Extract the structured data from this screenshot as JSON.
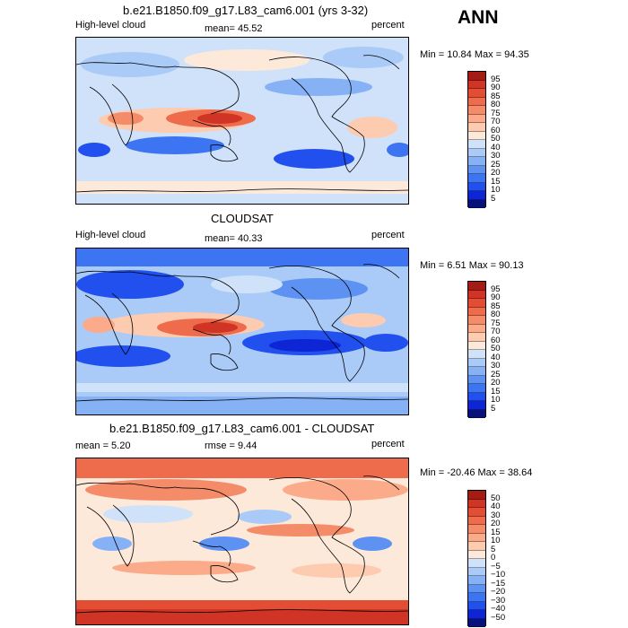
{
  "season_label": "ANN",
  "panels": [
    {
      "title": "b.e21.B1850.f09_g17.L83_cam6.001 (yrs 3-32)",
      "left_label": "High-level cloud",
      "center_label": "mean=   45.52",
      "right_label": "percent",
      "minmax": "Min =   10.84 Max =   94.35"
    },
    {
      "title": "CLOUDSAT",
      "left_label": "High-level cloud",
      "center_label": "mean=   40.33",
      "right_label": "percent",
      "minmax": "Min =    6.51 Max =   90.13"
    },
    {
      "title": "b.e21.B1850.f09_g17.L83_cam6.001 - CLOUDSAT",
      "left_label": "mean =    5.20",
      "center_label": "rmse =    9.44",
      "right_label": "percent",
      "minmax": "Min = -20.46 Max =   38.64"
    }
  ],
  "colors": {
    "abs_scale": [
      "#08107a",
      "#0d25d4",
      "#2150ee",
      "#3c74f2",
      "#5e92f2",
      "#86b2f5",
      "#aacaf7",
      "#d0e2fa",
      "#fde9da",
      "#fdcbb0",
      "#fbab89",
      "#f58c69",
      "#ee6b4c",
      "#e34d34",
      "#cf3424",
      "#a51c14"
    ],
    "diff_scale": [
      "#08107a",
      "#0d25d4",
      "#2150ee",
      "#3c74f2",
      "#5e92f2",
      "#86b2f5",
      "#aacaf7",
      "#d0e2fa",
      "#fde9da",
      "#fdcbb0",
      "#fbab89",
      "#f58c69",
      "#ee6b4c",
      "#e34d34",
      "#cf3424",
      "#a51c14"
    ]
  },
  "chart_data": [
    {
      "type": "heatmap",
      "title": "b.e21.B1850.f09_g17.L83_cam6.001 (yrs 3-32)",
      "variable": "High-level cloud",
      "units": "percent",
      "mean": 45.52,
      "min": 10.84,
      "max": 94.35,
      "colorbar_levels": [
        5,
        10,
        15,
        20,
        25,
        30,
        40,
        50,
        60,
        70,
        75,
        80,
        85,
        90,
        95
      ],
      "colorbar_labels": [
        "95",
        "90",
        "85",
        "80",
        "75",
        "70",
        "60",
        "50",
        "40",
        "30",
        "25",
        "20",
        "15",
        "10",
        "5"
      ]
    },
    {
      "type": "heatmap",
      "title": "CLOUDSAT",
      "variable": "High-level cloud",
      "units": "percent",
      "mean": 40.33,
      "min": 6.51,
      "max": 90.13,
      "colorbar_levels": [
        5,
        10,
        15,
        20,
        25,
        30,
        40,
        50,
        60,
        70,
        75,
        80,
        85,
        90,
        95
      ],
      "colorbar_labels": [
        "95",
        "90",
        "85",
        "80",
        "75",
        "70",
        "60",
        "50",
        "40",
        "30",
        "25",
        "20",
        "15",
        "10",
        "5"
      ]
    },
    {
      "type": "heatmap",
      "title": "b.e21.B1850.f09_g17.L83_cam6.001 - CLOUDSAT",
      "units": "percent",
      "mean": 5.2,
      "rmse": 9.44,
      "min": -20.46,
      "max": 38.64,
      "colorbar_levels": [
        -50,
        -40,
        -30,
        -20,
        -15,
        -10,
        -5,
        0,
        5,
        10,
        15,
        20,
        30,
        40,
        50
      ],
      "colorbar_labels": [
        "50",
        "40",
        "30",
        "20",
        "15",
        "10",
        "5",
        "0",
        "−5",
        "−10",
        "−15",
        "−20",
        "−30",
        "−40",
        "−50"
      ]
    }
  ]
}
